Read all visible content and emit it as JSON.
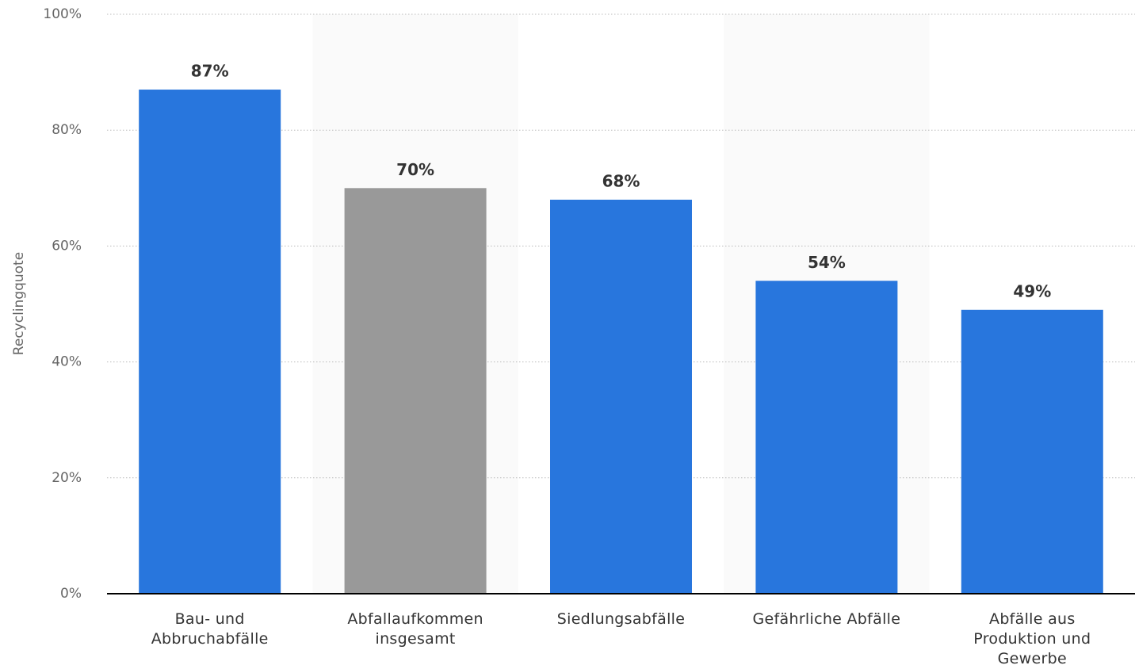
{
  "chart_data": {
    "type": "bar",
    "y_label": "Recyclingquote",
    "categories": [
      "Bau- und Abbruchabfälle",
      "Abfallaufkommen insgesamt",
      "Siedlungsabfälle",
      "Gefährliche Abfälle",
      "Abfälle aus Produktion und Gewerbe"
    ],
    "values": [
      87,
      70,
      68,
      54,
      49
    ],
    "value_labels": [
      "87%",
      "70%",
      "68%",
      "54%",
      "49%"
    ],
    "colors": [
      "#2876dd",
      "#999999",
      "#2876dd",
      "#2876dd",
      "#2876dd"
    ],
    "ylim": [
      0,
      100
    ],
    "yticks": [
      {
        "value": 0,
        "label": "0%"
      },
      {
        "value": 20,
        "label": "20%"
      },
      {
        "value": 40,
        "label": "40%"
      },
      {
        "value": 60,
        "label": "60%"
      },
      {
        "value": 80,
        "label": "80%"
      },
      {
        "value": 100,
        "label": "100%"
      }
    ],
    "grid": true
  }
}
